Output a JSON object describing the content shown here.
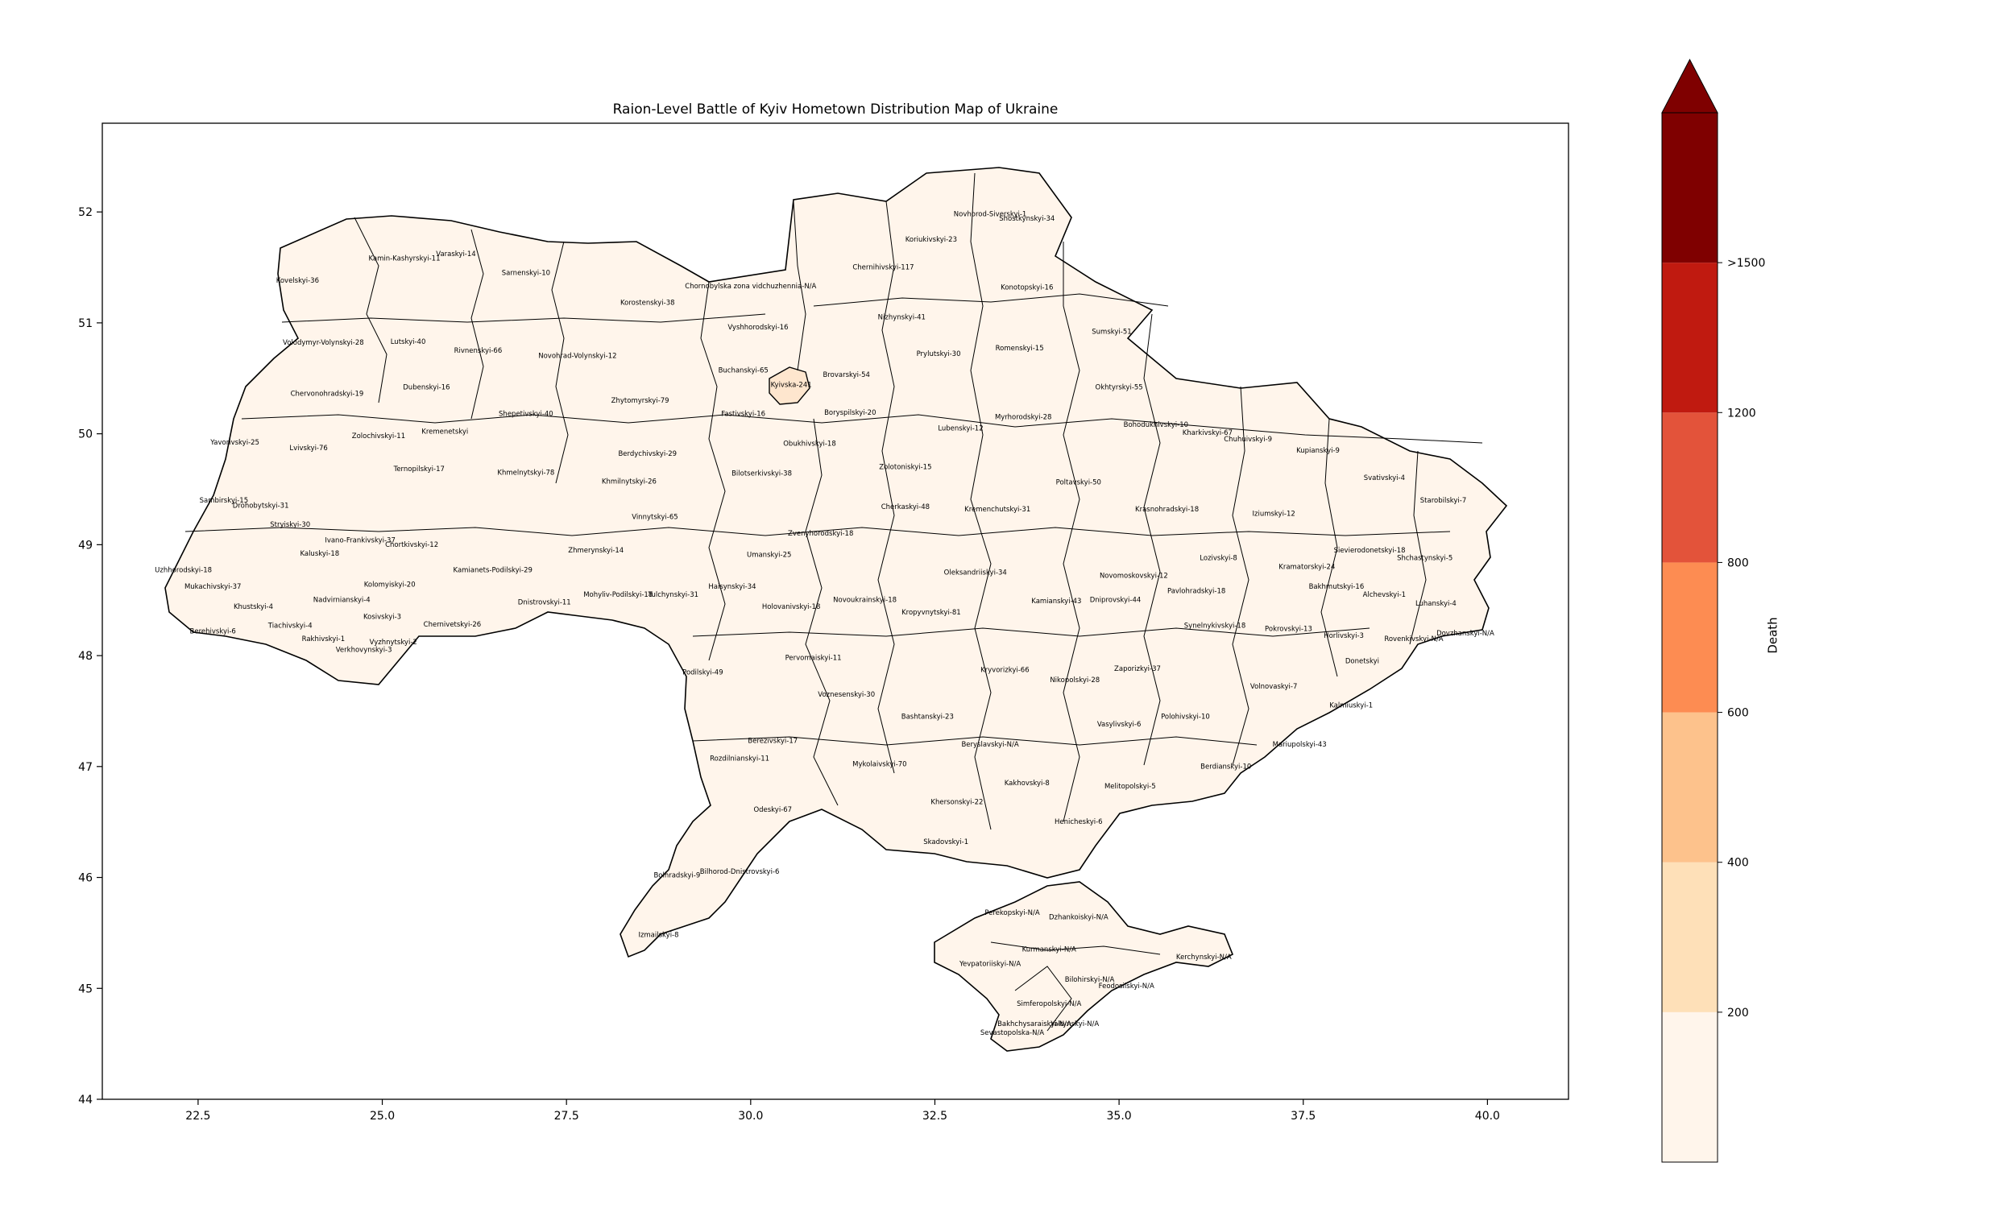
{
  "map": {
    "title": "Raion-Level Battle of Kyiv Hometown Distribution Map of Ukraine",
    "x_ticks": [
      "22.5",
      "25.0",
      "27.5",
      "30.0",
      "32.5",
      "35.0",
      "37.5",
      "40.0"
    ],
    "x_tick_values": [
      22.5,
      25.0,
      27.5,
      30.0,
      32.5,
      35.0,
      37.5,
      40.0
    ],
    "y_ticks": [
      "44",
      "45",
      "46",
      "47",
      "48",
      "49",
      "50",
      "51",
      "52"
    ],
    "y_tick_values": [
      44,
      45,
      46,
      47,
      48,
      49,
      50,
      51,
      52
    ],
    "xlim": [
      21.2,
      41.1
    ],
    "ylim": [
      44.0,
      52.8
    ],
    "raions": [
      {
        "label": "Kovelskyi-36",
        "lon": 23.85,
        "lat": 51.38,
        "value": 36
      },
      {
        "label": "Kamin-Kashyrskyi-11",
        "lon": 25.3,
        "lat": 51.58,
        "value": 11
      },
      {
        "label": "Varaskyi-14",
        "lon": 26.0,
        "lat": 51.62,
        "value": 14
      },
      {
        "label": "Sarnenskyi-10",
        "lon": 26.95,
        "lat": 51.45,
        "value": 10
      },
      {
        "label": "Korostenskyi-38",
        "lon": 28.6,
        "lat": 51.18,
        "value": 38
      },
      {
        "label": "Chornobylska zona vidchuzhennia-N/A",
        "lon": 30.0,
        "lat": 51.33,
        "value": null
      },
      {
        "label": "Chernihivskyi-117",
        "lon": 31.8,
        "lat": 51.5,
        "value": 117
      },
      {
        "label": "Novhorod-Siverskyi-1",
        "lon": 33.25,
        "lat": 51.98,
        "value": 1
      },
      {
        "label": "Shostkynskyi-34",
        "lon": 33.75,
        "lat": 51.94,
        "value": 34
      },
      {
        "label": "Koriukivskyi-23",
        "lon": 32.45,
        "lat": 51.75,
        "value": 23
      },
      {
        "label": "Konotopskyi-16",
        "lon": 33.75,
        "lat": 51.32,
        "value": 16
      },
      {
        "label": "Volodymyr-Volynskyi-28",
        "lon": 24.2,
        "lat": 50.82,
        "value": 28
      },
      {
        "label": "Lutskyi-40",
        "lon": 25.35,
        "lat": 50.83,
        "value": 40
      },
      {
        "label": "Rivnenskyi-66",
        "lon": 26.3,
        "lat": 50.75,
        "value": 66
      },
      {
        "label": "Novohrad-Volynskyi-12",
        "lon": 27.65,
        "lat": 50.7,
        "value": 12
      },
      {
        "label": "Vyshhorodskyi-16",
        "lon": 30.1,
        "lat": 50.96,
        "value": 16
      },
      {
        "label": "Nizhynskyi-41",
        "lon": 32.05,
        "lat": 51.05,
        "value": 41
      },
      {
        "label": "Prylutskyi-30",
        "lon": 32.55,
        "lat": 50.72,
        "value": 30
      },
      {
        "label": "Romenskyi-15",
        "lon": 33.65,
        "lat": 50.77,
        "value": 15
      },
      {
        "label": "Sumskyi-51",
        "lon": 34.9,
        "lat": 50.92,
        "value": 51
      },
      {
        "label": "Buchanskyi-65",
        "lon": 29.9,
        "lat": 50.57,
        "value": 65
      },
      {
        "label": "Kyivska-241",
        "lon": 30.55,
        "lat": 50.44,
        "value": 241
      },
      {
        "label": "Brovarskyi-54",
        "lon": 31.3,
        "lat": 50.53,
        "value": 54
      },
      {
        "label": "Chervonohradskyi-19",
        "lon": 24.25,
        "lat": 50.36,
        "value": 19
      },
      {
        "label": "Dubenskyi-16",
        "lon": 25.6,
        "lat": 50.42,
        "value": 16
      },
      {
        "label": "Shepetivskyi-40",
        "lon": 26.95,
        "lat": 50.18,
        "value": 40
      },
      {
        "label": "Zhytomyrskyi-79",
        "lon": 28.5,
        "lat": 50.3,
        "value": 79
      },
      {
        "label": "Fastivskyi-16",
        "lon": 29.9,
        "lat": 50.18,
        "value": 16
      },
      {
        "label": "Boryspilskyi-20",
        "lon": 31.35,
        "lat": 50.19,
        "value": 20
      },
      {
        "label": "Lubenskyi-12",
        "lon": 32.85,
        "lat": 50.05,
        "value": 12
      },
      {
        "label": "Myrhorodskyi-28",
        "lon": 33.7,
        "lat": 50.15,
        "value": 28
      },
      {
        "label": "Okhtyrskyi-55",
        "lon": 35.0,
        "lat": 50.42,
        "value": 55
      },
      {
        "label": "Bohodukhivskyi-10",
        "lon": 35.5,
        "lat": 50.08,
        "value": 10
      },
      {
        "label": "Kharkivskyi-67",
        "lon": 36.2,
        "lat": 50.01,
        "value": 67
      },
      {
        "label": "Chuhuivskyi-9",
        "lon": 36.75,
        "lat": 49.95,
        "value": 9
      },
      {
        "label": "Kupianskyi-9",
        "lon": 37.7,
        "lat": 49.85,
        "value": 9
      },
      {
        "label": "Svativskyi-4",
        "lon": 38.6,
        "lat": 49.6,
        "value": 4
      },
      {
        "label": "Starobilskyi-7",
        "lon": 39.4,
        "lat": 49.4,
        "value": 7
      },
      {
        "label": "Yavorivskyi-25",
        "lon": 23.0,
        "lat": 49.92,
        "value": 25
      },
      {
        "label": "Lvivskyi-76",
        "lon": 24.0,
        "lat": 49.87,
        "value": 76
      },
      {
        "label": "Zolochivskyi-11",
        "lon": 24.95,
        "lat": 49.98,
        "value": 11
      },
      {
        "label": "Kremenetskyi",
        "lon": 25.85,
        "lat": 50.02,
        "value": null
      },
      {
        "label": "Berdychivskyi-29",
        "lon": 28.6,
        "lat": 49.82,
        "value": 29
      },
      {
        "label": "Obukhivskyi-18",
        "lon": 30.8,
        "lat": 49.91,
        "value": 18
      },
      {
        "label": "Zolotoniskyi-15",
        "lon": 32.1,
        "lat": 49.7,
        "value": 15
      },
      {
        "label": "Poltavskyi-50",
        "lon": 34.45,
        "lat": 49.56,
        "value": 50
      },
      {
        "label": "Krasnohradskyi-18",
        "lon": 35.65,
        "lat": 49.32,
        "value": 18
      },
      {
        "label": "Iziumskyi-12",
        "lon": 37.1,
        "lat": 49.28,
        "value": 12
      },
      {
        "label": "Ternopilskyi-17",
        "lon": 25.5,
        "lat": 49.68,
        "value": 17
      },
      {
        "label": "Khmelnytskyi-78",
        "lon": 26.95,
        "lat": 49.65,
        "value": 78
      },
      {
        "label": "Khmilnytskyi-26",
        "lon": 28.35,
        "lat": 49.57,
        "value": 26
      },
      {
        "label": "Bilotserkivskyi-38",
        "lon": 30.15,
        "lat": 49.64,
        "value": 38
      },
      {
        "label": "Cherkaskyi-48",
        "lon": 32.1,
        "lat": 49.34,
        "value": 48
      },
      {
        "label": "Kremenchutskyi-31",
        "lon": 33.35,
        "lat": 49.32,
        "value": 31
      },
      {
        "label": "Sambirskyi-15",
        "lon": 22.85,
        "lat": 49.4,
        "value": 15
      },
      {
        "label": "Drohobytskyi-31",
        "lon": 23.35,
        "lat": 49.35,
        "value": 31
      },
      {
        "label": "Stryiskyi-30",
        "lon": 23.75,
        "lat": 49.18,
        "value": 30
      },
      {
        "label": "Ivano-Frankivskyi-37",
        "lon": 24.7,
        "lat": 49.04,
        "value": 37
      },
      {
        "label": "Kaluskyi-18",
        "lon": 24.15,
        "lat": 48.92,
        "value": 18
      },
      {
        "label": "Chortkivskyi-12",
        "lon": 25.4,
        "lat": 49.0,
        "value": 12
      },
      {
        "label": "Vinnytskyi-65",
        "lon": 28.7,
        "lat": 49.25,
        "value": 65
      },
      {
        "label": "Zvenyhorodskyi-18",
        "lon": 30.95,
        "lat": 49.1,
        "value": 18
      },
      {
        "label": "Umanskyi-25",
        "lon": 30.25,
        "lat": 48.91,
        "value": 25
      },
      {
        "label": "Zhmerynskyi-14",
        "lon": 27.9,
        "lat": 48.95,
        "value": 14
      },
      {
        "label": "Kamianets-Podilskyi-29",
        "lon": 26.5,
        "lat": 48.77,
        "value": 29
      },
      {
        "label": "Uzhhorodskyi-18",
        "lon": 22.3,
        "lat": 48.77,
        "value": 18
      },
      {
        "label": "Mukachivskyi-37",
        "lon": 22.7,
        "lat": 48.62,
        "value": 37
      },
      {
        "label": "Kolomyiskyi-20",
        "lon": 25.1,
        "lat": 48.64,
        "value": 20
      },
      {
        "label": "Nadvirnianskyi-4",
        "lon": 24.45,
        "lat": 48.5,
        "value": 4
      },
      {
        "label": "Khustskyi-4",
        "lon": 23.25,
        "lat": 48.44,
        "value": 4
      },
      {
        "label": "Kosivskyi-3",
        "lon": 25.0,
        "lat": 48.35,
        "value": 3
      },
      {
        "label": "Dnistrovskyi-11",
        "lon": 27.2,
        "lat": 48.48,
        "value": 11
      },
      {
        "label": "Mohyliv-Podilskyi-18",
        "lon": 28.2,
        "lat": 48.55,
        "value": 18
      },
      {
        "label": "Tulchynskyi-31",
        "lon": 28.95,
        "lat": 48.55,
        "value": 31
      },
      {
        "label": "Haisynskyi-34",
        "lon": 29.75,
        "lat": 48.62,
        "value": 34
      },
      {
        "label": "Novoukrainskyi-18",
        "lon": 31.55,
        "lat": 48.5,
        "value": 18
      },
      {
        "label": "Oleksandriiskyi-34",
        "lon": 33.05,
        "lat": 48.75,
        "value": 34
      },
      {
        "label": "Novomoskovskyi-12",
        "lon": 35.2,
        "lat": 48.72,
        "value": 12
      },
      {
        "label": "Pavlohradskyi-18",
        "lon": 36.05,
        "lat": 48.58,
        "value": 18
      },
      {
        "label": "Lozivskyi-8",
        "lon": 36.35,
        "lat": 48.88,
        "value": 8
      },
      {
        "label": "Kramatorskyi-24",
        "lon": 37.55,
        "lat": 48.8,
        "value": 24
      },
      {
        "label": "Sievierodonetskyi-18",
        "lon": 38.4,
        "lat": 48.95,
        "value": 18
      },
      {
        "label": "Shchastynskyi-5",
        "lon": 39.15,
        "lat": 48.88,
        "value": 5
      },
      {
        "label": "Bakhmutskyi-16",
        "lon": 37.95,
        "lat": 48.62,
        "value": 16
      },
      {
        "label": "Alchevskyi-1",
        "lon": 38.6,
        "lat": 48.55,
        "value": 1
      },
      {
        "label": "Luhanskyi-4",
        "lon": 39.3,
        "lat": 48.47,
        "value": 4
      },
      {
        "label": "Holovanivskyi-18",
        "lon": 30.55,
        "lat": 48.44,
        "value": 18
      },
      {
        "label": "Kropyvnytskyi-81",
        "lon": 32.45,
        "lat": 48.39,
        "value": 81
      },
      {
        "label": "Kamianskyi-43",
        "lon": 34.15,
        "lat": 48.49,
        "value": 43
      },
      {
        "label": "Dniprovskyi-44",
        "lon": 34.95,
        "lat": 48.5,
        "value": 44
      },
      {
        "label": "Synelnykivskyi-18",
        "lon": 36.3,
        "lat": 48.27,
        "value": 18
      },
      {
        "label": "Pokrovskyi-13",
        "lon": 37.3,
        "lat": 48.24,
        "value": 13
      },
      {
        "label": "Horlivskyi-3",
        "lon": 38.05,
        "lat": 48.18,
        "value": 3
      },
      {
        "label": "Rovenkivskyi-N/A",
        "lon": 39.0,
        "lat": 48.15,
        "value": null
      },
      {
        "label": "Dovzhanskyi-N/A",
        "lon": 39.7,
        "lat": 48.2,
        "value": null
      },
      {
        "label": "Tiachivskyi-4",
        "lon": 23.75,
        "lat": 48.27,
        "value": 4
      },
      {
        "label": "Berehivskyi-6",
        "lon": 22.7,
        "lat": 48.22,
        "value": 6
      },
      {
        "label": "Rakhivskyi-1",
        "lon": 24.2,
        "lat": 48.15,
        "value": 1
      },
      {
        "label": "Verkhovynskyi-3",
        "lon": 24.75,
        "lat": 48.05,
        "value": 3
      },
      {
        "label": "Vyzhnytskyi-2",
        "lon": 25.15,
        "lat": 48.12,
        "value": 2
      },
      {
        "label": "Chernivetskyi-26",
        "lon": 25.95,
        "lat": 48.28,
        "value": 26
      },
      {
        "label": "Podilskyi-49",
        "lon": 29.35,
        "lat": 47.85,
        "value": 49
      },
      {
        "label": "Pervomaiskyi-11",
        "lon": 30.85,
        "lat": 47.98,
        "value": 11
      },
      {
        "label": "Kryvorizkyi-66",
        "lon": 33.45,
        "lat": 47.87,
        "value": 66
      },
      {
        "label": "Nikopolskyi-28",
        "lon": 34.4,
        "lat": 47.78,
        "value": 28
      },
      {
        "label": "Zaporizkyi-37",
        "lon": 35.25,
        "lat": 47.88,
        "value": 37
      },
      {
        "label": "Donetskyi",
        "lon": 38.3,
        "lat": 47.95,
        "value": null
      },
      {
        "label": "Voznesenskyi-30",
        "lon": 31.3,
        "lat": 47.65,
        "value": 30
      },
      {
        "label": "Bashtanskyi-23",
        "lon": 32.4,
        "lat": 47.45,
        "value": 23
      },
      {
        "label": "Volnovaskyi-7",
        "lon": 37.1,
        "lat": 47.72,
        "value": 7
      },
      {
        "label": "Kalmiuskyi-1",
        "lon": 38.15,
        "lat": 47.55,
        "value": 1
      },
      {
        "label": "Vasylivskyi-6",
        "lon": 35.0,
        "lat": 47.38,
        "value": 6
      },
      {
        "label": "Polohivskyi-10",
        "lon": 35.9,
        "lat": 47.45,
        "value": 10
      },
      {
        "label": "Berezivskyi-17",
        "lon": 30.3,
        "lat": 47.23,
        "value": 17
      },
      {
        "label": "Beryslavskyi-N/A",
        "lon": 33.25,
        "lat": 47.2,
        "value": null
      },
      {
        "label": "Mariupolskyi-43",
        "lon": 37.45,
        "lat": 47.2,
        "value": 43
      },
      {
        "label": "Rozdilnianskyi-11",
        "lon": 29.85,
        "lat": 47.07,
        "value": 11
      },
      {
        "label": "Mykolaivskyi-70",
        "lon": 31.75,
        "lat": 47.02,
        "value": 70
      },
      {
        "label": "Berdianskyi-10",
        "lon": 36.45,
        "lat": 47.0,
        "value": 10
      },
      {
        "label": "Kakhovskyi-8",
        "lon": 33.75,
        "lat": 46.85,
        "value": 8
      },
      {
        "label": "Melitopolskyi-5",
        "lon": 35.15,
        "lat": 46.82,
        "value": 5
      },
      {
        "label": "Khersonskyi-22",
        "lon": 32.8,
        "lat": 46.68,
        "value": 22
      },
      {
        "label": "Odeskyi-67",
        "lon": 30.3,
        "lat": 46.61,
        "value": 67
      },
      {
        "label": "Henicheskyi-6",
        "lon": 34.45,
        "lat": 46.5,
        "value": 6
      },
      {
        "label": "Skadovskyi-1",
        "lon": 32.65,
        "lat": 46.32,
        "value": 1
      },
      {
        "label": "Bilhorod-Dnistrovskyi-6",
        "lon": 29.85,
        "lat": 46.05,
        "value": 6
      },
      {
        "label": "Bolhradskyi-9",
        "lon": 29.0,
        "lat": 46.02,
        "value": 9
      },
      {
        "label": "Perekopskyi-N/A",
        "lon": 33.55,
        "lat": 45.68,
        "value": null
      },
      {
        "label": "Dzhankoiskyi-N/A",
        "lon": 34.45,
        "lat": 45.64,
        "value": null
      },
      {
        "label": "Izmailskyi-8",
        "lon": 28.75,
        "lat": 45.48,
        "value": 8
      },
      {
        "label": "Kurmanskyi-N/A",
        "lon": 34.05,
        "lat": 45.35,
        "value": null
      },
      {
        "label": "Yevpatoriiskyi-N/A",
        "lon": 33.25,
        "lat": 45.22,
        "value": null
      },
      {
        "label": "Kerchynskyi-N/A",
        "lon": 36.15,
        "lat": 45.28,
        "value": null
      },
      {
        "label": "Bilohirskyi-N/A",
        "lon": 34.6,
        "lat": 45.08,
        "value": null
      },
      {
        "label": "Feodosiiskyi-N/A",
        "lon": 35.1,
        "lat": 45.02,
        "value": null
      },
      {
        "label": "Simferopolskyi-N/A",
        "lon": 34.05,
        "lat": 44.86,
        "value": null
      },
      {
        "label": "Bakhchysaraiskyi-N/A",
        "lon": 33.85,
        "lat": 44.68,
        "value": null
      },
      {
        "label": "Yaltynskyi-N/A",
        "lon": 34.4,
        "lat": 44.68,
        "value": null
      },
      {
        "label": "Sevastopolska-N/A",
        "lon": 33.55,
        "lat": 44.6,
        "value": null
      }
    ],
    "colors": {
      "fill_default": "#fff5eb",
      "fill_kyiv": "#fee6ce",
      "border": "#000000"
    }
  },
  "colorbar": {
    "label": "Death",
    "ticks": [
      "200",
      "400",
      "600",
      "800",
      "1200",
      ">1500"
    ],
    "boundaries": [
      0,
      200,
      400,
      600,
      800,
      1200,
      1500
    ],
    "colors": [
      "#fff5eb",
      "#fee0b8",
      "#fdc28c",
      "#fd8c52",
      "#e3533a",
      "#c01a10",
      "#7f0000"
    ],
    "extend": "max"
  }
}
